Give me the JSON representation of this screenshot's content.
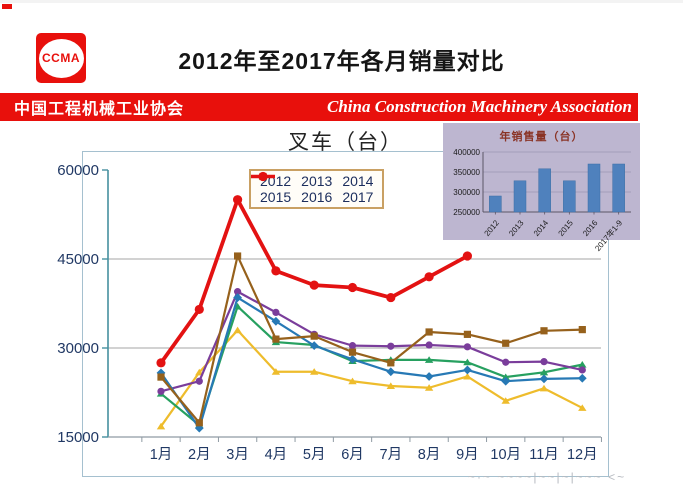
{
  "page": {
    "header_title": "2012年至2017年各月销量对比",
    "logo_text": "CCMA",
    "banner_cn": "中国工程机械工业协会",
    "banner_en": "China Construction Machinery Association",
    "footer_watermark": "~·~ ~~~~|~~|~|~~~ <~"
  },
  "colors": {
    "banner_red": "#e8100c",
    "axis_text_navy": "#203864",
    "gridline_gray": "#a6a6a6",
    "y_axis_teal": "#46909f",
    "x_axis_gray": "#8f9aa3",
    "legend_border_tan": "#c9a063",
    "inset_bg_lavender": "#bdb6d0",
    "inset_bar_blue": "#4f81bd"
  },
  "chart_data": [
    {
      "id": "monthly-lines",
      "type": "line",
      "title": "叉车（台）",
      "categories": [
        "1月",
        "2月",
        "3月",
        "4月",
        "5月",
        "6月",
        "7月",
        "8月",
        "9月",
        "10月",
        "11月",
        "12月"
      ],
      "ylim": [
        15000,
        60000
      ],
      "yticks": [
        15000,
        30000,
        45000,
        60000
      ],
      "grid": true,
      "legend_position": "top-center-inside",
      "series": [
        {
          "name": "2012",
          "color": "#eebc2c",
          "marker": "triangle",
          "thick": false,
          "values": [
            16800,
            25900,
            33000,
            26000,
            26000,
            24400,
            23600,
            23300,
            25200,
            21100,
            23200,
            19900
          ]
        },
        {
          "name": "2013",
          "color": "#27a060",
          "marker": "triangle",
          "thick": false,
          "values": [
            22300,
            17000,
            37000,
            31000,
            30500,
            27800,
            28000,
            28000,
            27600,
            25100,
            25900,
            27200
          ]
        },
        {
          "name": "2014",
          "color": "#7a3d9b",
          "marker": "circle",
          "thick": false,
          "values": [
            22700,
            24400,
            39500,
            36000,
            32300,
            30400,
            30300,
            30500,
            30200,
            27600,
            27700,
            26300
          ]
        },
        {
          "name": "2015",
          "color": "#2779b5",
          "marker": "diamond",
          "thick": false,
          "values": [
            25800,
            16500,
            38500,
            34500,
            30400,
            28100,
            26000,
            25200,
            26300,
            24400,
            24800,
            24900
          ]
        },
        {
          "name": "2016",
          "color": "#96611c",
          "marker": "square",
          "thick": false,
          "values": [
            25100,
            17400,
            45500,
            31500,
            32000,
            29300,
            27500,
            32700,
            32300,
            30800,
            32900,
            33100
          ]
        },
        {
          "name": "2017",
          "color": "#e31212",
          "marker": "circle",
          "thick": true,
          "values": [
            27500,
            36500,
            55000,
            43000,
            40600,
            40200,
            38500,
            42000,
            45500,
            null,
            null,
            null
          ]
        }
      ]
    },
    {
      "id": "annual-bars",
      "type": "bar",
      "title": "年销售量（台）",
      "categories": [
        "2012",
        "2013",
        "2014",
        "2015",
        "2016",
        "2017年1-9"
      ],
      "values": [
        290000,
        328000,
        358000,
        328000,
        370000,
        370000
      ],
      "ylim": [
        250000,
        400000
      ],
      "yticks": [
        250000,
        300000,
        350000,
        400000
      ],
      "grid": true
    }
  ]
}
